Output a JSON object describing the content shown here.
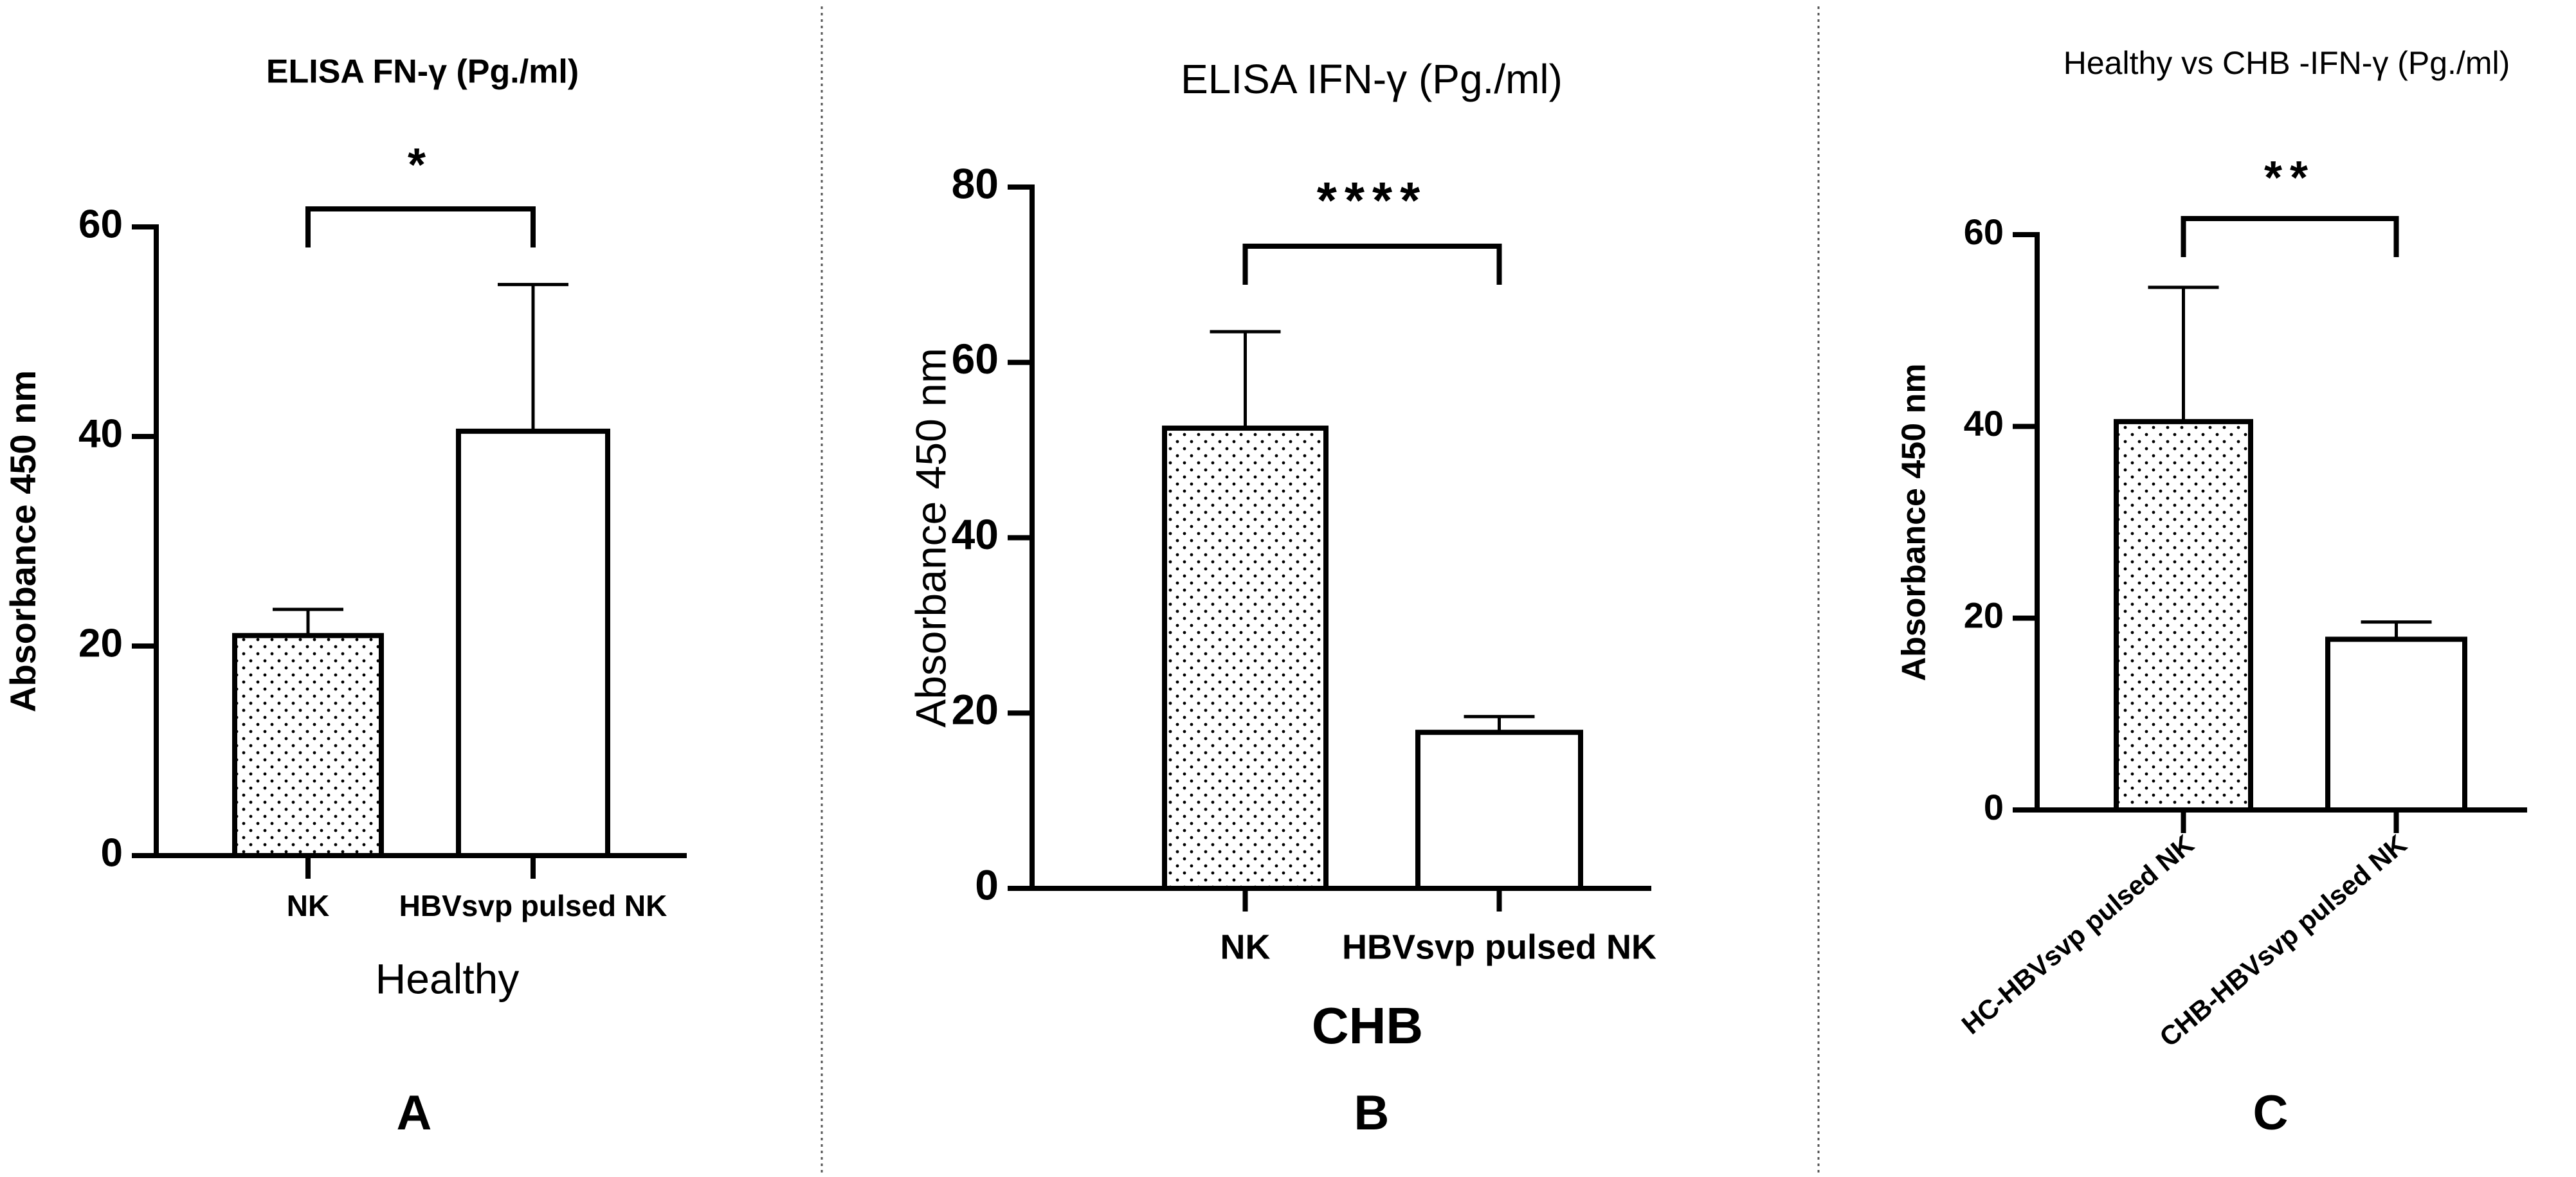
{
  "chart_data": [
    {
      "type": "bar",
      "title": "ELISA FN-γ (Pg./ml)",
      "y_label": "Absorbance 450 nm",
      "x_label": "Healthy",
      "panel_label": "A",
      "categories": [
        "NK",
        "HBVsvp pulsed NK"
      ],
      "values": [
        21,
        40.5
      ],
      "errors": [
        2.5,
        14
      ],
      "bar_fills": [
        "dotted",
        "white"
      ],
      "significance": "*",
      "ylim": [
        0,
        60
      ],
      "yticks": [
        0,
        20,
        40,
        60
      ]
    },
    {
      "type": "bar",
      "title": "ELISA IFN-γ (Pg./ml)",
      "y_label": "Absorbance 450 nm",
      "x_label": "CHB",
      "panel_label": "B",
      "categories": [
        "NK",
        "HBVsvp pulsed NK"
      ],
      "values": [
        52.5,
        17.8
      ],
      "errors": [
        11,
        1.8
      ],
      "bar_fills": [
        "dotted",
        "white"
      ],
      "significance": "****",
      "ylim": [
        0,
        80
      ],
      "yticks": [
        0,
        20,
        40,
        60,
        80
      ]
    },
    {
      "type": "bar",
      "title": "Healthy vs CHB -IFN-γ (Pg./ml)",
      "y_label": "Absorbance 450 nm",
      "panel_label": "C",
      "categories": [
        "HC-HBVsvp pulsed NK",
        "CHB-HBVsvp pulsed NK"
      ],
      "values": [
        40.5,
        17.8
      ],
      "errors": [
        14,
        1.8
      ],
      "bar_fills": [
        "dotted",
        "white"
      ],
      "significance": "**",
      "ylim": [
        0,
        60
      ],
      "yticks": [
        0,
        20,
        40,
        60
      ]
    }
  ]
}
